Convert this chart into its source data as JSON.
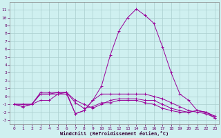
{
  "xlabel": "Windchill (Refroidissement éolien,°C)",
  "background_color": "#cff0f0",
  "grid_color": "#aacece",
  "line_color": "#990099",
  "xlim": [
    -0.5,
    23.5
  ],
  "ylim": [
    -3.5,
    12
  ],
  "yticks": [
    -3,
    -2,
    -1,
    0,
    1,
    2,
    3,
    4,
    5,
    6,
    7,
    8,
    9,
    10,
    11
  ],
  "xticks": [
    0,
    1,
    2,
    3,
    4,
    5,
    6,
    7,
    8,
    9,
    10,
    11,
    12,
    13,
    14,
    15,
    16,
    17,
    18,
    19,
    20,
    21,
    22,
    23
  ],
  "series": [
    {
      "x": [
        0,
        1,
        2,
        3,
        4,
        5,
        6,
        7,
        8,
        9,
        10,
        11,
        12,
        13,
        14,
        15,
        16,
        17,
        18,
        19,
        20,
        21,
        22,
        23
      ],
      "y": [
        -1,
        -1.3,
        -1,
        -0.5,
        -0.5,
        0.3,
        0.3,
        -2.2,
        -1.8,
        -0.5,
        1.3,
        5.2,
        8.3,
        10.0,
        11.1,
        10.3,
        9.3,
        6.3,
        3.0,
        0.3,
        -0.5,
        -1.8,
        -2.0,
        -2.7
      ]
    },
    {
      "x": [
        0,
        1,
        2,
        3,
        4,
        5,
        6,
        7,
        8,
        9,
        10,
        11,
        12,
        13,
        14,
        15,
        16,
        17,
        18,
        19,
        20,
        21,
        22,
        23
      ],
      "y": [
        -1,
        -1.3,
        -1,
        0.3,
        0.3,
        0.5,
        0.5,
        -2.2,
        -1.8,
        -0.5,
        0.3,
        0.3,
        0.3,
        0.3,
        0.3,
        0.3,
        0.0,
        -0.3,
        -0.8,
        -1.3,
        -1.8,
        -2.0,
        -2.2,
        -2.7
      ]
    },
    {
      "x": [
        0,
        1,
        2,
        3,
        4,
        5,
        6,
        7,
        8,
        9,
        10,
        11,
        12,
        13,
        14,
        15,
        16,
        17,
        18,
        19,
        20,
        21,
        22,
        23
      ],
      "y": [
        -1,
        -1,
        -1,
        0.5,
        0.5,
        0.5,
        0.5,
        -0.5,
        -1.0,
        -1.5,
        -1.0,
        -0.5,
        -0.3,
        -0.3,
        -0.3,
        -0.5,
        -0.5,
        -1.0,
        -1.5,
        -1.8,
        -2.0,
        -1.8,
        -2.0,
        -2.5
      ]
    },
    {
      "x": [
        0,
        1,
        2,
        3,
        4,
        5,
        6,
        7,
        8,
        9,
        10,
        11,
        12,
        13,
        14,
        15,
        16,
        17,
        18,
        19,
        20,
        21,
        22,
        23
      ],
      "y": [
        -1,
        -1,
        -1,
        0.3,
        0.3,
        0.3,
        0.5,
        -0.8,
        -1.5,
        -1.3,
        -0.8,
        -0.8,
        -0.5,
        -0.5,
        -0.5,
        -0.8,
        -1.0,
        -1.5,
        -1.8,
        -2.0,
        -2.0,
        -1.8,
        -2.0,
        -2.5
      ]
    }
  ]
}
